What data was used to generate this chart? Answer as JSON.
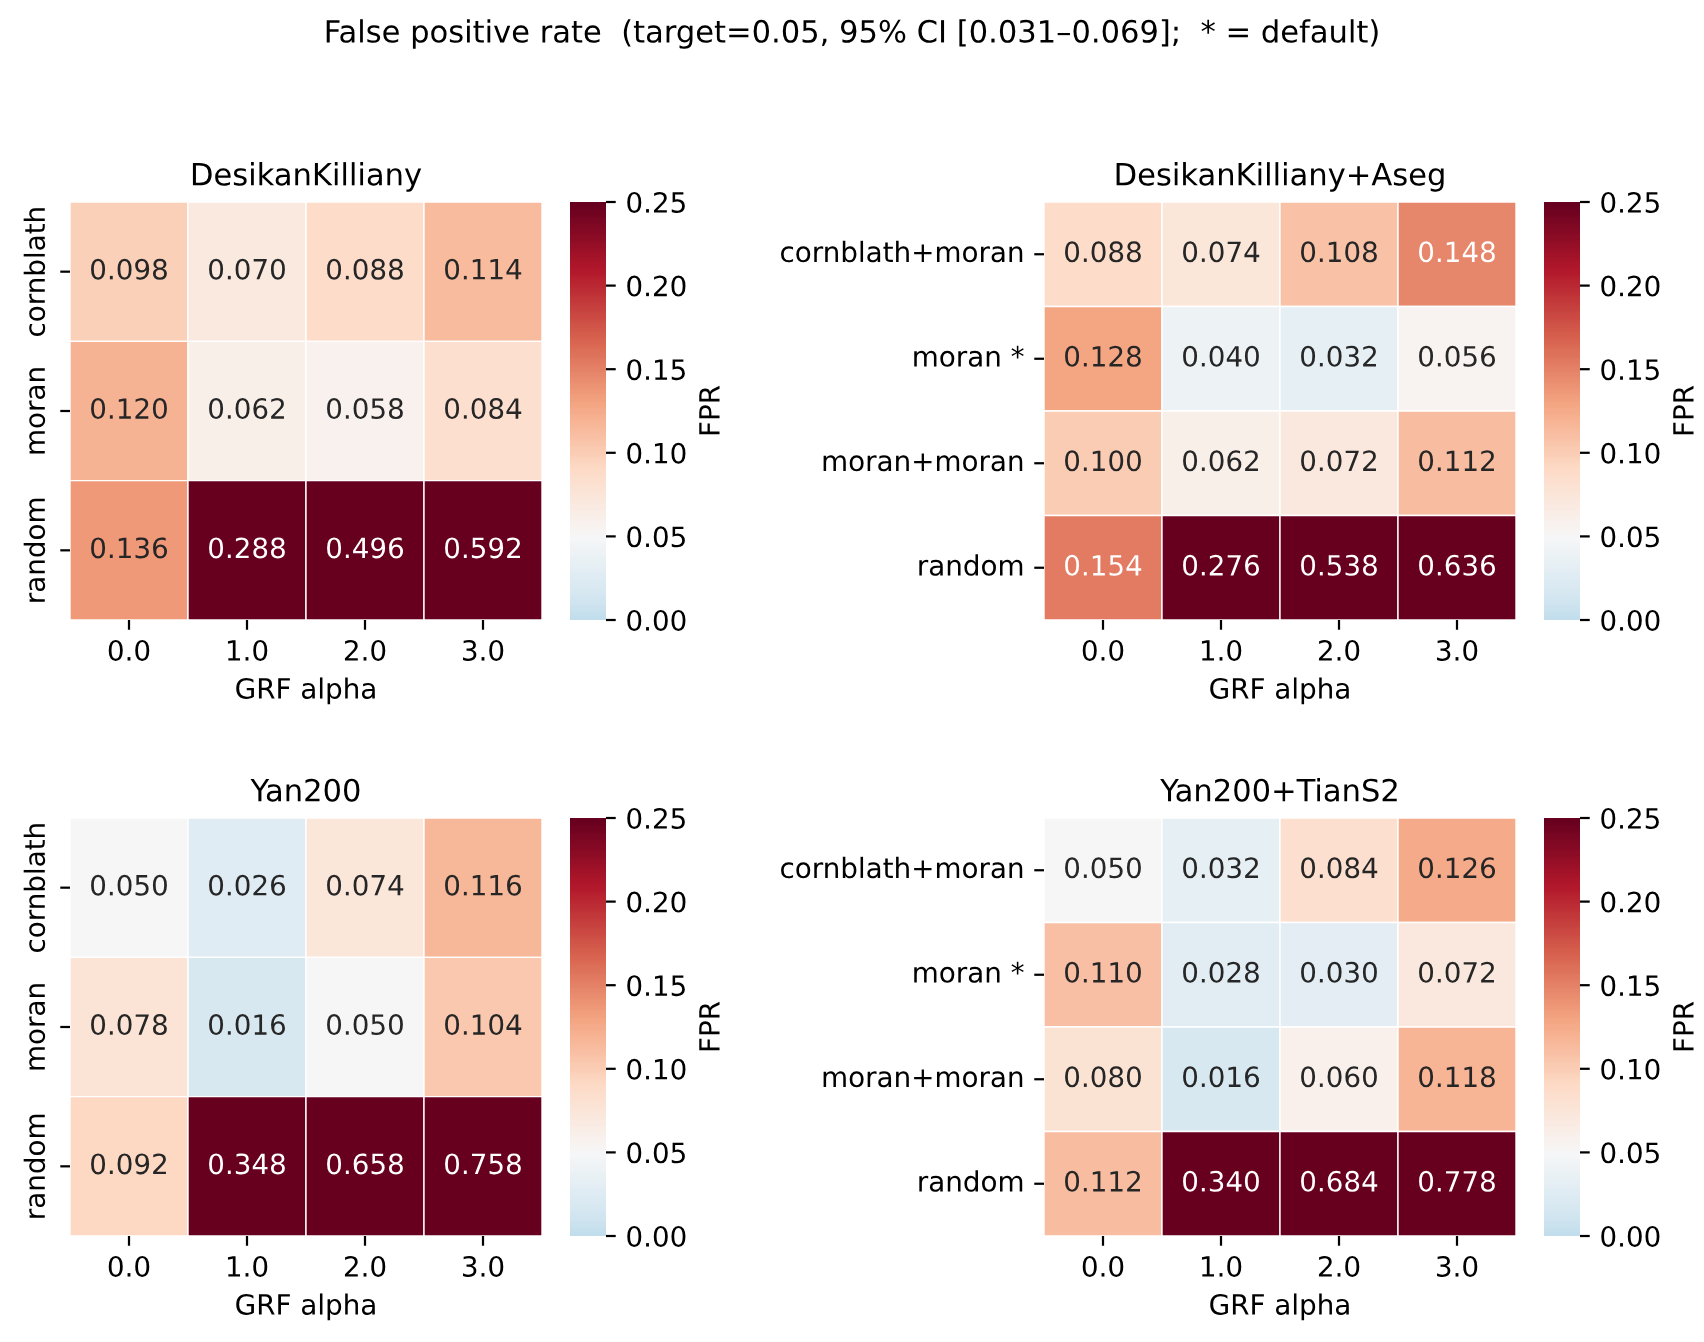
{
  "chart_data": [
    {
      "type": "heatmap",
      "title": "DesikanKilliany",
      "xlabel": "GRF alpha",
      "clabel": "FPR",
      "annotations": [
        "False positive rate  (target=0.05, 95% CI [0.031–0.069];  * = default)"
      ],
      "categories": [
        "0.0",
        "1.0",
        "2.0",
        "3.0"
      ],
      "y_categories": [
        "cornblath",
        "moran",
        "random"
      ],
      "cells": [
        [
          0.098,
          0.07,
          0.088,
          0.114
        ],
        [
          0.12,
          0.062,
          0.058,
          0.084
        ],
        [
          0.136,
          0.288,
          0.496,
          0.592
        ]
      ],
      "cell_labels": [
        [
          "0.098",
          "0.070",
          "0.088",
          "0.114"
        ],
        [
          "0.120",
          "0.062",
          "0.058",
          "0.084"
        ],
        [
          "0.136",
          "0.288",
          "0.496",
          "0.592"
        ]
      ],
      "clim": [
        0,
        0.25
      ],
      "cticks": [
        {
          "value": 0,
          "label": "0.00"
        },
        {
          "value": 0.05,
          "label": "0.05"
        },
        {
          "value": 0.1,
          "label": "0.10"
        },
        {
          "value": 0.15,
          "label": "0.15"
        },
        {
          "value": 0.2,
          "label": "0.20"
        },
        {
          "value": 0.25,
          "label": "0.25"
        }
      ]
    },
    {
      "type": "heatmap",
      "title": "DesikanKilliany+Aseg",
      "xlabel": "GRF alpha",
      "clabel": "FPR",
      "categories": [
        "0.0",
        "1.0",
        "2.0",
        "3.0"
      ],
      "y_categories": [
        "cornblath+moran",
        "moran *",
        "moran+moran",
        "random"
      ],
      "cells": [
        [
          0.088,
          0.074,
          0.108,
          0.148
        ],
        [
          0.128,
          0.04,
          0.032,
          0.056
        ],
        [
          0.1,
          0.062,
          0.072,
          0.112
        ],
        [
          0.154,
          0.276,
          0.538,
          0.636
        ]
      ],
      "cell_labels": [
        [
          "0.088",
          "0.074",
          "0.108",
          "0.148"
        ],
        [
          "0.128",
          "0.040",
          "0.032",
          "0.056"
        ],
        [
          "0.100",
          "0.062",
          "0.072",
          "0.112"
        ],
        [
          "0.154",
          "0.276",
          "0.538",
          "0.636"
        ]
      ],
      "clim": [
        0,
        0.25
      ],
      "cticks": [
        {
          "value": 0,
          "label": "0.00"
        },
        {
          "value": 0.05,
          "label": "0.05"
        },
        {
          "value": 0.1,
          "label": "0.10"
        },
        {
          "value": 0.15,
          "label": "0.15"
        },
        {
          "value": 0.2,
          "label": "0.20"
        },
        {
          "value": 0.25,
          "label": "0.25"
        }
      ]
    },
    {
      "type": "heatmap",
      "title": "Yan200",
      "xlabel": "GRF alpha",
      "clabel": "FPR",
      "categories": [
        "0.0",
        "1.0",
        "2.0",
        "3.0"
      ],
      "y_categories": [
        "cornblath",
        "moran",
        "random"
      ],
      "cells": [
        [
          0.05,
          0.026,
          0.074,
          0.116
        ],
        [
          0.078,
          0.016,
          0.05,
          0.104
        ],
        [
          0.092,
          0.348,
          0.658,
          0.758
        ]
      ],
      "cell_labels": [
        [
          "0.050",
          "0.026",
          "0.074",
          "0.116"
        ],
        [
          "0.078",
          "0.016",
          "0.050",
          "0.104"
        ],
        [
          "0.092",
          "0.348",
          "0.658",
          "0.758"
        ]
      ],
      "clim": [
        0,
        0.25
      ],
      "cticks": [
        {
          "value": 0,
          "label": "0.00"
        },
        {
          "value": 0.05,
          "label": "0.05"
        },
        {
          "value": 0.1,
          "label": "0.10"
        },
        {
          "value": 0.15,
          "label": "0.15"
        },
        {
          "value": 0.2,
          "label": "0.20"
        },
        {
          "value": 0.25,
          "label": "0.25"
        }
      ]
    },
    {
      "type": "heatmap",
      "title": "Yan200+TianS2",
      "xlabel": "GRF alpha",
      "clabel": "FPR",
      "categories": [
        "0.0",
        "1.0",
        "2.0",
        "3.0"
      ],
      "y_categories": [
        "cornblath+moran",
        "moran *",
        "moran+moran",
        "random"
      ],
      "cells": [
        [
          0.05,
          0.032,
          0.084,
          0.126
        ],
        [
          0.11,
          0.028,
          0.03,
          0.072
        ],
        [
          0.08,
          0.016,
          0.06,
          0.118
        ],
        [
          0.112,
          0.34,
          0.684,
          0.778
        ]
      ],
      "cell_labels": [
        [
          "0.050",
          "0.032",
          "0.084",
          "0.126"
        ],
        [
          "0.110",
          "0.028",
          "0.030",
          "0.072"
        ],
        [
          "0.080",
          "0.016",
          "0.060",
          "0.118"
        ],
        [
          "0.112",
          "0.340",
          "0.684",
          "0.778"
        ]
      ],
      "clim": [
        0,
        0.25
      ],
      "cticks": [
        {
          "value": 0,
          "label": "0.00"
        },
        {
          "value": 0.05,
          "label": "0.05"
        },
        {
          "value": 0.1,
          "label": "0.10"
        },
        {
          "value": 0.15,
          "label": "0.15"
        },
        {
          "value": 0.2,
          "label": "0.20"
        },
        {
          "value": 0.25,
          "label": "0.25"
        }
      ]
    }
  ]
}
